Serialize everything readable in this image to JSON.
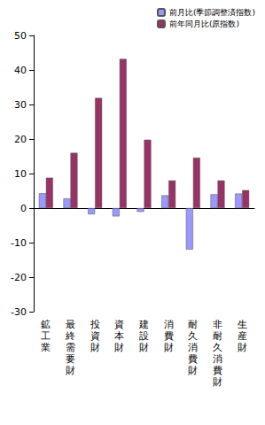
{
  "chart_data": {
    "type": "bar",
    "categories": [
      "鉱工業",
      "最終需要財",
      "投資財",
      "資本財",
      "建設財",
      "消費財",
      "耐久消費財",
      "非耐久消費財",
      "生産財"
    ],
    "series": [
      {
        "name": "前月比(季節調整済指数)",
        "color": "#9999ff",
        "values": [
          4.3,
          2.8,
          -1.8,
          -2.4,
          -1.1,
          3.7,
          -12.0,
          4.0,
          4.2
        ]
      },
      {
        "name": "前年同月比(原指数)",
        "color": "#993366",
        "values": [
          8.8,
          16.0,
          31.9,
          43.2,
          19.8,
          8.0,
          14.6,
          8.0,
          5.2
        ]
      }
    ],
    "ylim": [
      -30,
      50
    ],
    "yticks": [
      -30,
      -20,
      -10,
      0,
      10,
      20,
      30,
      40,
      50
    ],
    "grid": false,
    "legend": "top-right"
  }
}
